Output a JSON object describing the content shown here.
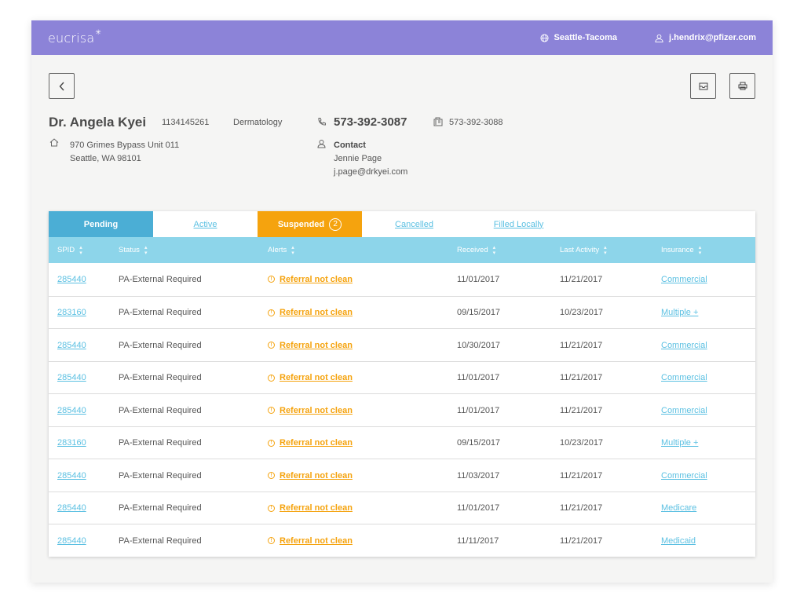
{
  "header": {
    "logo": "eucrisa",
    "location": "Seattle-Tacoma",
    "user": "j.hendrix@pfizer.com"
  },
  "doctor": {
    "name": "Dr. Angela Kyei",
    "npi": "1134145261",
    "specialty": "Dermatology",
    "address_line1": "970 Grimes Bypass Unit 011",
    "address_line2": "Seattle, WA 98101",
    "phone": "573-392-3087",
    "fax": "573-392-3088",
    "contact_label": "Contact",
    "contact_name": "Jennie Page",
    "contact_email": "j.page@drkyei.com"
  },
  "tabs": [
    {
      "label": "Pending",
      "state": "selected"
    },
    {
      "label": "Active"
    },
    {
      "label": "Suspended",
      "count": "2"
    },
    {
      "label": "Cancelled"
    },
    {
      "label": "Filled Locally"
    }
  ],
  "columns": [
    "SPID",
    "Status",
    "Alerts",
    "Received",
    "Last Activity",
    "Insurance"
  ],
  "rows": [
    {
      "spid": "285440",
      "status": "PA-External Required",
      "alert": "Referral not clean",
      "received": "11/01/2017",
      "last": "11/21/2017",
      "insurance": "Commercial"
    },
    {
      "spid": "283160",
      "status": "PA-External Required",
      "alert": "Referral not clean",
      "received": "09/15/2017",
      "last": "10/23/2017",
      "insurance": "Multiple +"
    },
    {
      "spid": "285440",
      "status": "PA-External Required",
      "alert": "Referral not clean",
      "received": "10/30/2017",
      "last": "11/21/2017",
      "insurance": "Commercial"
    },
    {
      "spid": "285440",
      "status": "PA-External Required",
      "alert": "Referral not clean",
      "received": "11/01/2017",
      "last": "11/21/2017",
      "insurance": "Commercial"
    },
    {
      "spid": "285440",
      "status": "PA-External Required",
      "alert": "Referral not clean",
      "received": "11/01/2017",
      "last": "11/21/2017",
      "insurance": "Commercial"
    },
    {
      "spid": "283160",
      "status": "PA-External Required",
      "alert": "Referral not clean",
      "received": "09/15/2017",
      "last": "10/23/2017",
      "insurance": "Multiple +"
    },
    {
      "spid": "285440",
      "status": "PA-External Required",
      "alert": "Referral not clean",
      "received": "11/03/2017",
      "last": "11/21/2017",
      "insurance": "Commercial"
    },
    {
      "spid": "285440",
      "status": "PA-External Required",
      "alert": "Referral not clean",
      "received": "11/01/2017",
      "last": "11/21/2017",
      "insurance": "Medicare"
    },
    {
      "spid": "285440",
      "status": "PA-External Required",
      "alert": "Referral not clean",
      "received": "11/11/2017",
      "last": "11/21/2017",
      "insurance": "Medicaid"
    }
  ],
  "colors": {
    "brand": "#8c83d8",
    "tab_pending": "#4baed5",
    "tab_suspended": "#f5a30e",
    "table_header": "#8dd5ea",
    "link": "#5bc0e2"
  }
}
